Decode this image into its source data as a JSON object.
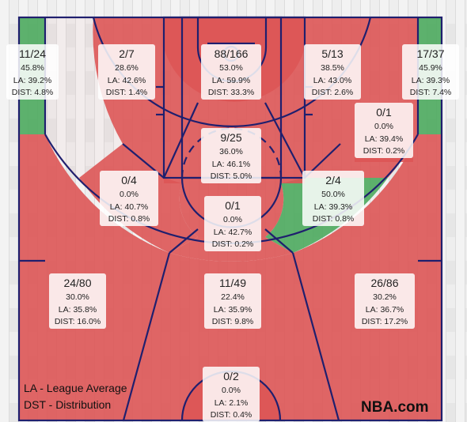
{
  "chart_data": {
    "type": "heatmap",
    "zones": [
      {
        "id": "left-corner-3",
        "fgm_fga": "11/24",
        "pct": "45.8%",
        "la": "LA: 39.2%",
        "dist": "DIST: 4.8%",
        "rating": "above"
      },
      {
        "id": "left-baseline-mid",
        "fgm_fga": "2/7",
        "pct": "28.6%",
        "la": "LA: 42.6%",
        "dist": "DIST: 1.4%",
        "rating": "below"
      },
      {
        "id": "restricted-area",
        "fgm_fga": "88/166",
        "pct": "53.0%",
        "la": "LA: 59.9%",
        "dist": "DIST: 33.3%",
        "rating": "below"
      },
      {
        "id": "right-baseline-mid",
        "fgm_fga": "5/13",
        "pct": "38.5%",
        "la": "LA: 43.0%",
        "dist": "DIST: 2.6%",
        "rating": "below"
      },
      {
        "id": "right-corner-3",
        "fgm_fga": "17/37",
        "pct": "45.9%",
        "la": "LA: 39.3%",
        "dist": "DIST: 7.4%",
        "rating": "above"
      },
      {
        "id": "right-short-mid",
        "fgm_fga": "0/1",
        "pct": "0.0%",
        "la": "LA: 39.4%",
        "dist": "DIST: 0.2%",
        "rating": "below"
      },
      {
        "id": "paint-non-ra",
        "fgm_fga": "9/25",
        "pct": "36.0%",
        "la": "LA: 46.1%",
        "dist": "DIST: 5.0%",
        "rating": "below"
      },
      {
        "id": "left-wing-mid",
        "fgm_fga": "0/4",
        "pct": "0.0%",
        "la": "LA: 40.7%",
        "dist": "DIST: 0.8%",
        "rating": "below"
      },
      {
        "id": "right-wing-mid",
        "fgm_fga": "2/4",
        "pct": "50.0%",
        "la": "LA: 39.3%",
        "dist": "DIST: 0.8%",
        "rating": "above"
      },
      {
        "id": "top-key-mid",
        "fgm_fga": "0/1",
        "pct": "0.0%",
        "la": "LA: 42.7%",
        "dist": "DIST: 0.2%",
        "rating": "below"
      },
      {
        "id": "left-wing-3",
        "fgm_fga": "24/80",
        "pct": "30.0%",
        "la": "LA: 35.8%",
        "dist": "DIST: 16.0%",
        "rating": "below"
      },
      {
        "id": "top-key-3",
        "fgm_fga": "11/49",
        "pct": "22.4%",
        "la": "LA: 35.9%",
        "dist": "DIST: 9.8%",
        "rating": "below"
      },
      {
        "id": "right-wing-3",
        "fgm_fga": "26/86",
        "pct": "30.2%",
        "la": "LA: 36.7%",
        "dist": "DIST: 17.2%",
        "rating": "below"
      },
      {
        "id": "backcourt",
        "fgm_fga": "0/2",
        "pct": "0.0%",
        "la": "LA: 2.1%",
        "dist": "DIST: 0.4%",
        "rating": "below"
      }
    ],
    "legend": [
      "LA - League Average",
      "DST - Distribution"
    ],
    "colors": {
      "above": "#4caa5e",
      "below": "#dd5555",
      "neutral": "#f2f2f2",
      "lines": "#1f1f6e"
    }
  },
  "brand": "NBA.com"
}
